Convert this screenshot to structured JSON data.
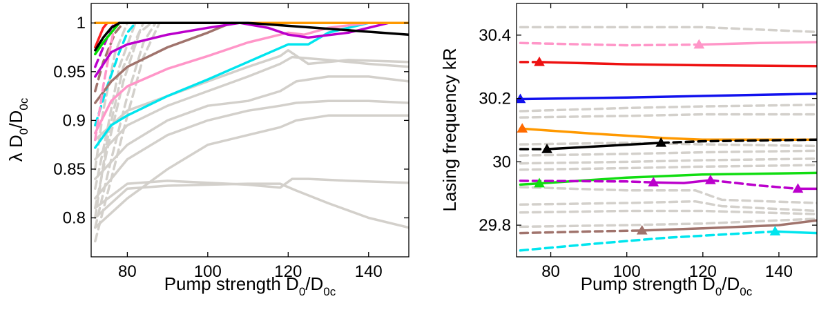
{
  "chart_data": [
    {
      "type": "line",
      "xlabel": "Pump strength D0/D0c",
      "ylabel": "λ D0/D0c",
      "xlim": [
        71,
        150
      ],
      "ylim": [
        0.76,
        1.02
      ],
      "xticks": [
        "80",
        "100",
        "120",
        "140"
      ],
      "yticks": [
        "0.8",
        "0.85",
        "0.9",
        "0.95",
        "1"
      ],
      "grid": false,
      "series": [
        {
          "color": "#d3d0cb",
          "dashed": false,
          "x": [
            72,
            80,
            90,
            100,
            110,
            118,
            121,
            125,
            135,
            150
          ],
          "y": [
            0.81,
            0.835,
            0.838,
            0.836,
            0.834,
            0.831,
            0.84,
            0.84,
            0.838,
            0.836
          ]
        },
        {
          "color": "#d3d0cb",
          "dashed": false,
          "x": [
            72,
            80,
            90,
            100,
            110,
            118,
            122,
            130,
            140,
            150
          ],
          "y": [
            0.8,
            0.83,
            0.833,
            0.834,
            0.835,
            0.835,
            0.828,
            0.815,
            0.8,
            0.79
          ]
        },
        {
          "color": "#d3d0cb",
          "dashed": false,
          "x": [
            72,
            80,
            90,
            100,
            110,
            118,
            122,
            130,
            140,
            150
          ],
          "y": [
            0.79,
            0.82,
            0.85,
            0.875,
            0.885,
            0.893,
            0.9,
            0.905,
            0.905,
            0.905
          ]
        },
        {
          "color": "#d3d0cb",
          "dashed": false,
          "x": [
            72,
            80,
            90,
            100,
            110,
            118,
            122,
            130,
            140,
            150
          ],
          "y": [
            0.82,
            0.86,
            0.885,
            0.9,
            0.91,
            0.915,
            0.918,
            0.92,
            0.92,
            0.918
          ]
        },
        {
          "color": "#d3d0cb",
          "dashed": false,
          "x": [
            72,
            80,
            90,
            100,
            110,
            118,
            122,
            130,
            140,
            150
          ],
          "y": [
            0.84,
            0.875,
            0.9,
            0.915,
            0.92,
            0.93,
            0.94,
            0.945,
            0.945,
            0.94
          ]
        },
        {
          "color": "#d3d0cb",
          "dashed": false,
          "x": [
            72,
            80,
            90,
            100,
            110,
            118,
            121,
            130,
            140,
            150
          ],
          "y": [
            0.86,
            0.895,
            0.915,
            0.93,
            0.945,
            0.958,
            0.965,
            0.962,
            0.958,
            0.955
          ]
        },
        {
          "color": "#d3d0cb",
          "dashed": false,
          "x": [
            72,
            80,
            90,
            100,
            110,
            118,
            120,
            125,
            135,
            150
          ],
          "y": [
            0.88,
            0.91,
            0.925,
            0.94,
            0.955,
            0.966,
            0.972,
            0.958,
            0.962,
            0.96
          ]
        },
        {
          "color": "#d3d0cb",
          "dashed": true,
          "x": [
            72,
            76,
            80,
            84,
            88
          ],
          "y": [
            0.776,
            0.84,
            0.905,
            0.965,
            1.0
          ]
        },
        {
          "color": "#d3d0cb",
          "dashed": true,
          "x": [
            72,
            76,
            80,
            84,
            87
          ],
          "y": [
            0.79,
            0.86,
            0.925,
            0.98,
            1.0
          ]
        },
        {
          "color": "#d3d0cb",
          "dashed": true,
          "x": [
            72,
            75,
            79,
            83,
            86
          ],
          "y": [
            0.81,
            0.87,
            0.94,
            0.99,
            1.0
          ]
        },
        {
          "color": "#d3d0cb",
          "dashed": true,
          "x": [
            72,
            75,
            78,
            82
          ],
          "y": [
            0.83,
            0.89,
            0.955,
            1.0
          ]
        },
        {
          "color": "#d3d0cb",
          "dashed": true,
          "x": [
            72,
            74,
            77,
            80
          ],
          "y": [
            0.85,
            0.91,
            0.97,
            1.0
          ]
        },
        {
          "color": "#d3d0cb",
          "dashed": true,
          "x": [
            72,
            75,
            79,
            84
          ],
          "y": [
            0.8,
            0.88,
            0.955,
            1.0
          ]
        },
        {
          "color": "#00e5ee",
          "dashed": true,
          "x": [
            72,
            75,
            78,
            80,
            82
          ],
          "y": [
            0.895,
            0.935,
            0.97,
            0.99,
            1.0
          ]
        },
        {
          "color": "#00e5ee",
          "dashed": false,
          "x": [
            72,
            76,
            80,
            90,
            100,
            110,
            120,
            125,
            130,
            140,
            150
          ],
          "y": [
            0.872,
            0.895,
            0.905,
            0.925,
            0.942,
            0.96,
            0.978,
            0.978,
            0.99,
            1.0,
            1.0
          ]
        },
        {
          "color": "#a0736c",
          "dashed": true,
          "x": [
            72,
            74,
            77,
            79
          ],
          "y": [
            0.93,
            0.96,
            0.99,
            1.0
          ]
        },
        {
          "color": "#a0736c",
          "dashed": false,
          "x": [
            72,
            76,
            80,
            90,
            100,
            104,
            106
          ],
          "y": [
            0.918,
            0.94,
            0.955,
            0.975,
            0.99,
            0.997,
            1.0
          ]
        },
        {
          "color": "#ff96c8",
          "dashed": true,
          "x": [
            72,
            74,
            76,
            77
          ],
          "y": [
            0.88,
            0.935,
            0.98,
            1.0
          ]
        },
        {
          "color": "#ff96c8",
          "dashed": false,
          "x": [
            72,
            76,
            80,
            90,
            100,
            110,
            120,
            124,
            130,
            140,
            150
          ],
          "y": [
            0.887,
            0.92,
            0.935,
            0.953,
            0.966,
            0.98,
            0.99,
            0.988,
            0.995,
            1.0,
            1.0
          ]
        },
        {
          "color": "#bb00cc",
          "dashed": true,
          "x": [
            72,
            74,
            76,
            77
          ],
          "y": [
            0.955,
            0.975,
            0.995,
            1.0
          ]
        },
        {
          "color": "#bb00cc",
          "dashed": false,
          "x": [
            72,
            76,
            80,
            90,
            100,
            108,
            115,
            120,
            125,
            135,
            145,
            150
          ],
          "y": [
            0.945,
            0.97,
            0.978,
            0.988,
            0.995,
            1.0,
            0.995,
            0.988,
            0.985,
            0.99,
            1.0,
            1.0
          ]
        },
        {
          "color": "#a0736c",
          "dashed": false,
          "x": [
            106,
            120,
            150
          ],
          "y": [
            1.0,
            1.0,
            1.0
          ]
        },
        {
          "color": "#ff2020",
          "dashed": false,
          "x": [
            72,
            73,
            74,
            75
          ],
          "y": [
            0.975,
            0.985,
            0.995,
            1.0
          ]
        },
        {
          "color": "#00dd00",
          "dashed": false,
          "x": [
            72,
            74,
            76,
            78
          ],
          "y": [
            0.968,
            0.98,
            0.99,
            1.0
          ]
        },
        {
          "color": "#ff9900",
          "dashed": false,
          "x": [
            72,
            150
          ],
          "y": [
            1.0,
            1.0
          ]
        },
        {
          "color": "#000000",
          "dashed": false,
          "x": [
            72,
            74,
            76,
            78
          ],
          "y": [
            0.972,
            0.985,
            0.995,
            1.0
          ]
        },
        {
          "color": "#000000",
          "dashed": false,
          "x": [
            78,
            110,
            150
          ],
          "y": [
            1.0,
            1.0,
            0.988
          ]
        }
      ]
    },
    {
      "type": "line",
      "xlabel": "Pump strength D0/D0c",
      "ylabel": "Lasing frequency kR",
      "xlim": [
        71,
        150
      ],
      "ylim": [
        29.7,
        30.5
      ],
      "xticks": [
        "80",
        "100",
        "120",
        "140"
      ],
      "yticks": [
        "29.8",
        "30",
        "30.2",
        "30.4"
      ],
      "grid": false,
      "series": [
        {
          "color": "#d3d0cb",
          "dashed": true,
          "x": [
            72,
            100,
            120,
            150
          ],
          "y": [
            30.425,
            30.425,
            30.425,
            30.41
          ]
        },
        {
          "color": "#d3d0cb",
          "dashed": true,
          "x": [
            72,
            100,
            120,
            150
          ],
          "y": [
            30.16,
            30.17,
            30.175,
            30.18
          ]
        },
        {
          "color": "#d3d0cb",
          "dashed": true,
          "x": [
            72,
            100,
            120,
            150
          ],
          "y": [
            30.14,
            30.145,
            30.15,
            30.15
          ]
        },
        {
          "color": "#d3d0cb",
          "dashed": true,
          "x": [
            72,
            100,
            120,
            150
          ],
          "y": [
            30.055,
            30.06,
            30.055,
            30.05
          ]
        },
        {
          "color": "#d3d0cb",
          "dashed": true,
          "x": [
            72,
            100,
            120,
            150
          ],
          "y": [
            30.02,
            30.025,
            30.03,
            30.035
          ]
        },
        {
          "color": "#d3d0cb",
          "dashed": true,
          "x": [
            72,
            100,
            120,
            150
          ],
          "y": [
            29.995,
            30.0,
            30.005,
            30.01
          ]
        },
        {
          "color": "#d3d0cb",
          "dashed": true,
          "x": [
            72,
            100,
            120,
            150
          ],
          "y": [
            29.975,
            29.98,
            29.985,
            29.99
          ]
        },
        {
          "color": "#d3d0cb",
          "dashed": true,
          "x": [
            72,
            100,
            118,
            125,
            150
          ],
          "y": [
            29.92,
            29.91,
            29.91,
            29.88,
            29.87
          ]
        },
        {
          "color": "#d3d0cb",
          "dashed": true,
          "x": [
            72,
            100,
            118,
            125,
            150
          ],
          "y": [
            29.865,
            29.87,
            29.875,
            29.86,
            29.845
          ]
        },
        {
          "color": "#d3d0cb",
          "dashed": true,
          "x": [
            72,
            100,
            120,
            150
          ],
          "y": [
            29.84,
            29.845,
            29.845,
            29.835
          ]
        },
        {
          "color": "#d3d0cb",
          "dashed": true,
          "x": [
            72,
            100,
            120,
            150
          ],
          "y": [
            29.795,
            29.8,
            29.805,
            29.82
          ]
        },
        {
          "color": "#ff96c8",
          "dashed": true,
          "x": [
            72,
            100,
            119
          ],
          "y": [
            30.375,
            30.368,
            30.37
          ]
        },
        {
          "color": "#ff96c8",
          "dashed": false,
          "x": [
            119,
            135,
            150
          ],
          "y": [
            30.37,
            30.375,
            30.378
          ]
        },
        {
          "color": "#ee1111",
          "dashed": true,
          "x": [
            72,
            77
          ],
          "y": [
            30.315,
            30.315
          ]
        },
        {
          "color": "#ee1111",
          "dashed": false,
          "x": [
            77,
            100,
            120,
            150
          ],
          "y": [
            30.315,
            30.308,
            30.305,
            30.302
          ]
        },
        {
          "color": "#1111ee",
          "dashed": false,
          "x": [
            72,
            100,
            150
          ],
          "y": [
            30.198,
            30.203,
            30.215
          ]
        },
        {
          "color": "#ff9900",
          "dashed": false,
          "x": [
            72,
            90,
            110,
            120,
            150
          ],
          "y": [
            30.105,
            30.09,
            30.075,
            30.07,
            30.07
          ]
        },
        {
          "color": "#000000",
          "dashed": true,
          "x": [
            72,
            79
          ],
          "y": [
            30.04,
            30.04
          ]
        },
        {
          "color": "#000000",
          "dashed": false,
          "x": [
            79,
            109
          ],
          "y": [
            30.04,
            30.06
          ]
        },
        {
          "color": "#000000",
          "dashed": true,
          "x": [
            109,
            120,
            150
          ],
          "y": [
            30.06,
            30.065,
            30.07
          ]
        },
        {
          "color": "#11dd11",
          "dashed": false,
          "x": [
            72,
            77,
            100,
            120,
            150
          ],
          "y": [
            29.928,
            29.932,
            29.95,
            29.96,
            29.965
          ]
        },
        {
          "color": "#bb00cc",
          "dashed": true,
          "x": [
            72,
            100,
            107
          ],
          "y": [
            29.94,
            29.938,
            29.935
          ]
        },
        {
          "color": "#bb00cc",
          "dashed": false,
          "x": [
            107,
            115,
            122
          ],
          "y": [
            29.935,
            29.933,
            29.942
          ]
        },
        {
          "color": "#bb00cc",
          "dashed": true,
          "x": [
            122,
            135,
            145
          ],
          "y": [
            29.942,
            29.925,
            29.915
          ]
        },
        {
          "color": "#bb00cc",
          "dashed": false,
          "x": [
            145,
            150
          ],
          "y": [
            29.915,
            29.915
          ]
        },
        {
          "color": "#a0736c",
          "dashed": true,
          "x": [
            72,
            90,
            104
          ],
          "y": [
            29.775,
            29.78,
            29.783
          ]
        },
        {
          "color": "#a0736c",
          "dashed": false,
          "x": [
            104,
            120,
            140,
            150
          ],
          "y": [
            29.783,
            29.79,
            29.8,
            29.815
          ]
        },
        {
          "color": "#00e5ee",
          "dashed": true,
          "x": [
            72,
            90,
            110,
            139
          ],
          "y": [
            29.72,
            29.74,
            29.76,
            29.78
          ]
        },
        {
          "color": "#00e5ee",
          "dashed": false,
          "x": [
            139,
            150
          ],
          "y": [
            29.78,
            29.775
          ]
        }
      ],
      "markers": [
        {
          "x": 119,
          "y": 30.37,
          "color": "#ff96c8"
        },
        {
          "x": 77,
          "y": 30.315,
          "color": "#ee1111"
        },
        {
          "x": 72,
          "y": 30.198,
          "color": "#1111ee"
        },
        {
          "x": 72.5,
          "y": 30.105,
          "color": "#ff6a00"
        },
        {
          "x": 79,
          "y": 30.04,
          "color": "#000000"
        },
        {
          "x": 109,
          "y": 30.06,
          "color": "#000000"
        },
        {
          "x": 77,
          "y": 29.932,
          "color": "#11dd11"
        },
        {
          "x": 107,
          "y": 29.935,
          "color": "#bb00cc"
        },
        {
          "x": 122,
          "y": 29.942,
          "color": "#bb00cc"
        },
        {
          "x": 145,
          "y": 29.915,
          "color": "#bb00cc"
        },
        {
          "x": 104,
          "y": 29.783,
          "color": "#a0736c"
        },
        {
          "x": 139,
          "y": 29.78,
          "color": "#00e5ee"
        }
      ]
    }
  ]
}
